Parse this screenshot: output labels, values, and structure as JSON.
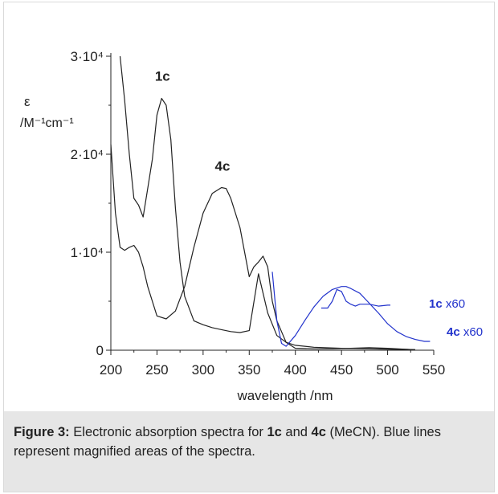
{
  "chart_data": {
    "type": "line",
    "xlabel": "wavelength /nm",
    "ylabel_symbol": "ε",
    "ylabel_unit": "/M⁻¹cm⁻¹",
    "xlim": [
      200,
      550
    ],
    "ylim": [
      0,
      30000
    ],
    "x_ticks": [
      "200",
      "250",
      "300",
      "350",
      "400",
      "450",
      "500",
      "550"
    ],
    "y_ticks": [
      {
        "value": 0,
        "label": "0"
      },
      {
        "value": 10000,
        "label": "1·10⁴"
      },
      {
        "value": 20000,
        "label": "2·10⁴"
      },
      {
        "value": 30000,
        "label": "3·10⁴"
      }
    ],
    "series": [
      {
        "name": "1c",
        "color": "#222222",
        "x": [
          210,
          215,
          220,
          225,
          230,
          235,
          240,
          245,
          250,
          255,
          260,
          265,
          270,
          275,
          280,
          290,
          300,
          310,
          320,
          330,
          340,
          350,
          360,
          370,
          380,
          390,
          400,
          420,
          450,
          480,
          500,
          520,
          530
        ],
        "y": [
          30000,
          25500,
          20000,
          15500,
          14800,
          13600,
          16500,
          19500,
          24000,
          25700,
          25000,
          21500,
          14500,
          9000,
          5500,
          3000,
          2600,
          2300,
          2100,
          1900,
          1800,
          2000,
          7800,
          3800,
          1500,
          800,
          500,
          300,
          200,
          150,
          100,
          80,
          50
        ]
      },
      {
        "name": "4c",
        "color": "#222222",
        "x": [
          200,
          205,
          210,
          215,
          220,
          225,
          230,
          235,
          240,
          250,
          260,
          270,
          280,
          290,
          300,
          310,
          320,
          325,
          330,
          340,
          350,
          355,
          360,
          365,
          370,
          375,
          380,
          390,
          400,
          420,
          440,
          460,
          480,
          500,
          520,
          530
        ],
        "y": [
          21000,
          14000,
          10500,
          10200,
          10500,
          10700,
          10000,
          8500,
          6500,
          3500,
          3200,
          4000,
          6500,
          10500,
          14000,
          16000,
          16600,
          16500,
          15500,
          12500,
          7500,
          8500,
          9000,
          9600,
          8500,
          5000,
          3000,
          800,
          200,
          150,
          150,
          200,
          250,
          200,
          100,
          50
        ]
      },
      {
        "name": "1c x60",
        "color": "#2233cc",
        "x": [
          428,
          435,
          440,
          445,
          450,
          455,
          460,
          465,
          470,
          480,
          490,
          500,
          503
        ],
        "y": [
          4300,
          4300,
          5000,
          6200,
          6000,
          5000,
          4700,
          4500,
          4700,
          4700,
          4500,
          4600,
          4600
        ]
      },
      {
        "name": "4c x60",
        "color": "#2233cc",
        "x": [
          375,
          380,
          385,
          390,
          400,
          410,
          420,
          430,
          440,
          450,
          455,
          460,
          470,
          480,
          490,
          500,
          510,
          520,
          530,
          540,
          546
        ],
        "y": [
          8000,
          3000,
          700,
          400,
          1500,
          3000,
          4400,
          5500,
          6200,
          6500,
          6500,
          6300,
          5800,
          4800,
          3800,
          2700,
          1900,
          1400,
          1100,
          900,
          900
        ]
      }
    ],
    "peak_labels": [
      "1c",
      "4c"
    ],
    "series_labels": [
      {
        "bold": "1c",
        "rest": " x60"
      },
      {
        "bold": "4c",
        "rest": " x60"
      }
    ]
  },
  "caption": {
    "label": "Figure 3:",
    "text1": " Electronic absorption spectra for ",
    "c1": "1c",
    "text2": " and ",
    "c2": "4c",
    "text3": " (MeCN). Blue lines represent magnified areas of the spectra."
  }
}
